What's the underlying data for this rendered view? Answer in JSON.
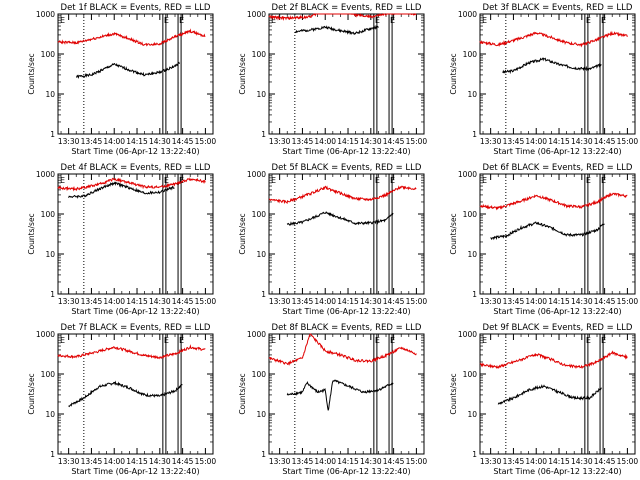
{
  "figure": {
    "start_time_label": "Start Time (06-Apr-12 13:22:40)",
    "ylabel": "Counts/sec",
    "colors": {
      "events": "#000000",
      "lld": "#e00000",
      "axes": "#000000",
      "markers": "#000000"
    },
    "axis": {
      "xlim": [
        "13:23",
        "15:05"
      ],
      "xticks": [
        "13:30",
        "13:45",
        "14:00",
        "14:15",
        "14:30",
        "14:45",
        "15:00"
      ],
      "ylim": [
        1,
        1000
      ],
      "yscale": "log",
      "yticks": [
        "1",
        "10",
        "100",
        "1000"
      ]
    },
    "markers": {
      "dotted": [
        "13:40"
      ],
      "solid": [
        "14:32",
        "14:34",
        "14:42",
        "14:44"
      ],
      "flag_labels": [
        "E",
        "E",
        "E"
      ]
    }
  },
  "chart_data": [
    {
      "type": "line",
      "title": "Det 1f BLACK = Events, RED = LLD",
      "series": [
        {
          "name": "Events",
          "x": [
            "13:35",
            "13:45",
            "13:55",
            "14:00",
            "14:10",
            "14:20",
            "14:30",
            "14:40",
            "14:43"
          ],
          "values": [
            27,
            30,
            45,
            55,
            40,
            30,
            35,
            50,
            60
          ]
        },
        {
          "name": "LLD",
          "x": [
            "13:23",
            "13:35",
            "13:50",
            "14:00",
            "14:10",
            "14:20",
            "14:30",
            "14:40",
            "14:50",
            "15:00"
          ],
          "values": [
            200,
            190,
            260,
            320,
            240,
            170,
            180,
            270,
            370,
            280
          ]
        }
      ]
    },
    {
      "type": "line",
      "title": "Det 2f BLACK = Events, RED = LLD",
      "series": [
        {
          "name": "Events",
          "x": [
            "13:40",
            "13:50",
            "14:00",
            "14:10",
            "14:20",
            "14:30",
            "14:35"
          ],
          "values": [
            360,
            400,
            470,
            380,
            330,
            430,
            480
          ]
        },
        {
          "name": "LLD",
          "x": [
            "13:23",
            "13:35",
            "13:50",
            "14:00",
            "14:05",
            "14:10",
            "14:20",
            "14:30",
            "14:40",
            "14:50",
            "15:00"
          ],
          "values": [
            850,
            780,
            850,
            1300,
            1050,
            1300,
            950,
            850,
            1000,
            1100,
            1000
          ]
        }
      ]
    },
    {
      "type": "line",
      "title": "Det 3f BLACK = Events, RED = LLD",
      "series": [
        {
          "name": "Events",
          "x": [
            "13:38",
            "13:45",
            "13:55",
            "14:05",
            "14:15",
            "14:25",
            "14:35",
            "14:43"
          ],
          "values": [
            35,
            38,
            60,
            75,
            55,
            45,
            42,
            55
          ]
        },
        {
          "name": "LLD",
          "x": [
            "13:23",
            "13:35",
            "13:50",
            "14:00",
            "14:10",
            "14:20",
            "14:30",
            "14:40",
            "14:50",
            "15:00"
          ],
          "values": [
            200,
            170,
            250,
            340,
            260,
            190,
            170,
            230,
            330,
            280
          ]
        }
      ]
    },
    {
      "type": "line",
      "title": "Det 4f BLACK = Events, RED = LLD",
      "series": [
        {
          "name": "Events",
          "x": [
            "13:30",
            "13:40",
            "13:50",
            "14:00",
            "14:10",
            "14:20",
            "14:30",
            "14:40"
          ],
          "values": [
            270,
            280,
            420,
            600,
            450,
            330,
            350,
            480
          ]
        },
        {
          "name": "LLD",
          "x": [
            "13:23",
            "13:35",
            "13:50",
            "14:00",
            "14:10",
            "14:20",
            "14:30",
            "14:40",
            "14:50",
            "15:00"
          ],
          "values": [
            450,
            420,
            550,
            750,
            600,
            480,
            470,
            560,
            750,
            650
          ]
        }
      ]
    },
    {
      "type": "line",
      "title": "Det 5f BLACK = Events, RED = LLD",
      "series": [
        {
          "name": "Events",
          "x": [
            "13:35",
            "13:45",
            "13:55",
            "14:00",
            "14:10",
            "14:20",
            "14:30",
            "14:40",
            "14:45"
          ],
          "values": [
            55,
            62,
            90,
            110,
            80,
            58,
            60,
            70,
            110
          ]
        },
        {
          "name": "LLD",
          "x": [
            "13:23",
            "13:35",
            "13:50",
            "14:00",
            "14:10",
            "14:20",
            "14:30",
            "14:40",
            "14:50",
            "15:00"
          ],
          "values": [
            230,
            200,
            320,
            460,
            330,
            240,
            230,
            300,
            480,
            420
          ]
        }
      ]
    },
    {
      "type": "line",
      "title": "Det 6f BLACK = Events, RED = LLD",
      "series": [
        {
          "name": "Events",
          "x": [
            "13:30",
            "13:40",
            "13:50",
            "14:00",
            "14:10",
            "14:20",
            "14:30",
            "14:40",
            "14:45"
          ],
          "values": [
            25,
            28,
            45,
            60,
            45,
            30,
            30,
            40,
            60
          ]
        },
        {
          "name": "LLD",
          "x": [
            "13:23",
            "13:35",
            "13:50",
            "14:00",
            "14:10",
            "14:20",
            "14:30",
            "14:40",
            "14:50",
            "15:00"
          ],
          "values": [
            160,
            140,
            210,
            290,
            220,
            160,
            150,
            200,
            320,
            280
          ]
        }
      ]
    },
    {
      "type": "line",
      "title": "Det 7f BLACK = Events, RED = LLD",
      "series": [
        {
          "name": "Events",
          "x": [
            "13:30",
            "13:40",
            "13:50",
            "14:00",
            "14:10",
            "14:20",
            "14:30",
            "14:40",
            "14:45"
          ],
          "values": [
            16,
            25,
            48,
            60,
            45,
            30,
            28,
            38,
            55
          ]
        },
        {
          "name": "LLD",
          "x": [
            "13:23",
            "13:35",
            "13:50",
            "14:00",
            "14:10",
            "14:20",
            "14:30",
            "14:40",
            "14:50",
            "15:00"
          ],
          "values": [
            290,
            270,
            370,
            470,
            370,
            290,
            260,
            320,
            470,
            400
          ]
        }
      ]
    },
    {
      "type": "line",
      "title": "Det 8f BLACK = Events, RED = LLD",
      "series": [
        {
          "name": "Events",
          "x": [
            "13:35",
            "13:45",
            "13:48",
            "13:55",
            "14:00",
            "14:02",
            "14:05",
            "14:15",
            "14:25",
            "14:35",
            "14:45"
          ],
          "values": [
            30,
            35,
            60,
            35,
            40,
            12,
            70,
            50,
            35,
            40,
            60
          ]
        },
        {
          "name": "LLD",
          "x": [
            "13:23",
            "13:35",
            "13:45",
            "13:50",
            "14:00",
            "14:10",
            "14:20",
            "14:30",
            "14:40",
            "14:50",
            "15:00"
          ],
          "values": [
            250,
            180,
            250,
            1000,
            380,
            300,
            220,
            210,
            290,
            450,
            320
          ]
        }
      ]
    },
    {
      "type": "line",
      "title": "Det 9f BLACK = Events, RED = LLD",
      "series": [
        {
          "name": "Events",
          "x": [
            "13:35",
            "13:45",
            "13:55",
            "14:05",
            "14:15",
            "14:25",
            "14:35",
            "14:43"
          ],
          "values": [
            18,
            25,
            40,
            50,
            35,
            25,
            25,
            45
          ]
        },
        {
          "name": "LLD",
          "x": [
            "13:23",
            "13:35",
            "13:50",
            "14:00",
            "14:10",
            "14:20",
            "14:30",
            "14:40",
            "14:50",
            "15:00"
          ],
          "values": [
            170,
            150,
            230,
            310,
            230,
            160,
            150,
            200,
            340,
            260
          ]
        }
      ]
    }
  ]
}
